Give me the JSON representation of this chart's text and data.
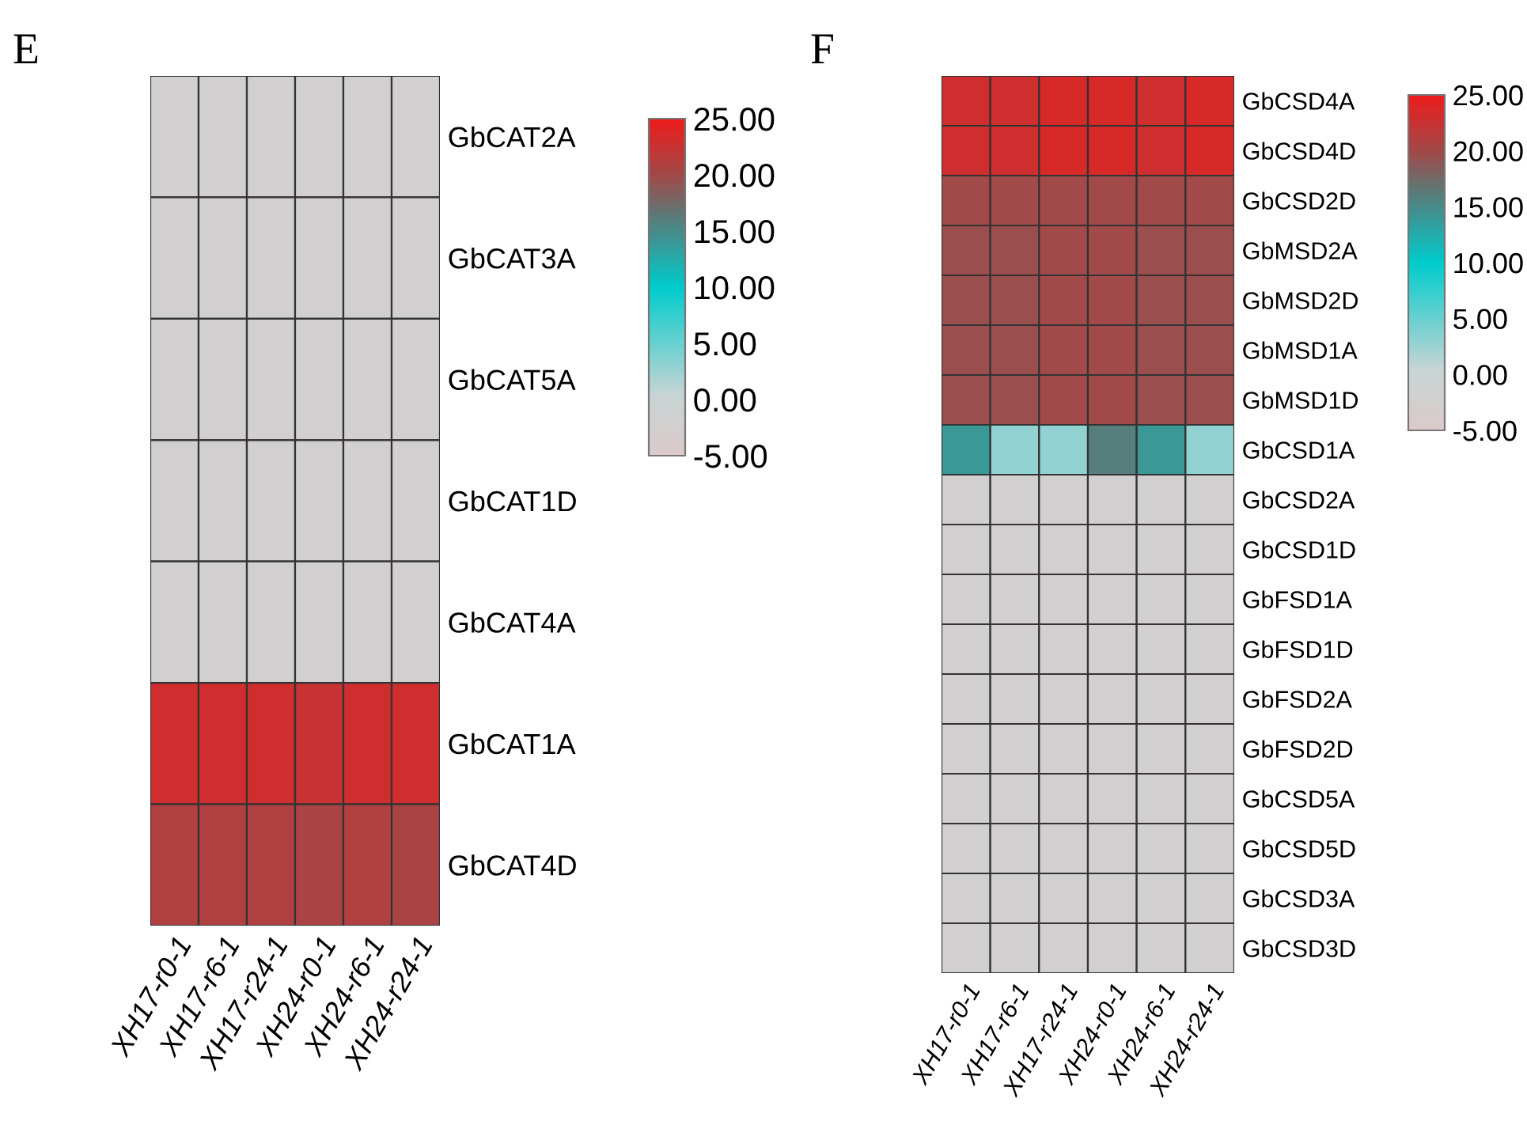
{
  "chart_data": [
    {
      "type": "heatmap",
      "title": "E",
      "categories": [
        "XH17-r0-1",
        "XH17-r6-1",
        "XH17-r24-1",
        "XH24-r0-1",
        "XH24-r6-1",
        "XH24-r24-1"
      ],
      "y_categories": [
        "GbCAT2A",
        "GbCAT3A",
        "GbCAT5A",
        "GbCAT1D",
        "GbCAT4A",
        "GbCAT1A",
        "GbCAT4D"
      ],
      "cells": [
        [
          -2,
          -2,
          -2,
          -2,
          -2,
          -2
        ],
        [
          -2,
          -2,
          -2,
          -2,
          -2,
          -2
        ],
        [
          -2,
          -2,
          -2,
          -2,
          -2,
          -2
        ],
        [
          -2,
          -2,
          -2,
          -2,
          -2,
          -2
        ],
        [
          -2,
          -2,
          -2,
          -2,
          -2,
          -2
        ],
        [
          23,
          23,
          23,
          22.5,
          23,
          23
        ],
        [
          21,
          21,
          21,
          20.5,
          21,
          20.5
        ]
      ],
      "clim": [
        -5,
        25
      ],
      "cticks": [
        {
          "value": 25,
          "label": "25.00"
        },
        {
          "value": 20,
          "label": "20.00"
        },
        {
          "value": 15,
          "label": "15.00"
        },
        {
          "value": 10,
          "label": "10.00"
        },
        {
          "value": 5,
          "label": "5.00"
        },
        {
          "value": 0,
          "label": "0.00"
        },
        {
          "value": -5,
          "label": "-5.00"
        }
      ]
    },
    {
      "type": "heatmap",
      "title": "F",
      "categories": [
        "XH17-r0-1",
        "XH17-r6-1",
        "XH17-r24-1",
        "XH24-r0-1",
        "XH24-r6-1",
        "XH24-r24-1"
      ],
      "y_categories": [
        "GbCSD4A",
        "GbCSD4D",
        "GbCSD2D",
        "GbMSD2A",
        "GbMSD2D",
        "GbMSD1A",
        "GbMSD1D",
        "GbCSD1A",
        "GbCSD2A",
        "GbCSD1D",
        "GbFSD1A",
        "GbFSD1D",
        "GbFSD2A",
        "GbFSD2D",
        "GbCSD5A",
        "GbCSD5D",
        "GbCSD3A",
        "GbCSD3D"
      ],
      "cells": [
        [
          23,
          23,
          23.5,
          23.5,
          23,
          23.5
        ],
        [
          23,
          23,
          23.5,
          23.5,
          23,
          23.5
        ],
        [
          20,
          20,
          20,
          20,
          20,
          20
        ],
        [
          19.5,
          19.5,
          20,
          20,
          19.5,
          19.5
        ],
        [
          19.5,
          19.5,
          20,
          20,
          19.5,
          19.5
        ],
        [
          19.5,
          19.5,
          20,
          20,
          19.5,
          19.5
        ],
        [
          19.5,
          19.5,
          20,
          20,
          19.5,
          19.5
        ],
        [
          14,
          3,
          3,
          16,
          14,
          3
        ],
        [
          -2,
          -2,
          -2,
          -2,
          -2,
          -2
        ],
        [
          -2,
          -2,
          -2,
          -2,
          -2,
          -2
        ],
        [
          -2,
          -2,
          -2,
          -2,
          -2,
          -2
        ],
        [
          -2,
          -2,
          -2,
          -2,
          -2,
          -2
        ],
        [
          -2,
          -2,
          -2,
          -2,
          -2,
          -2
        ],
        [
          -2,
          -2,
          -2,
          -2,
          -2,
          -2
        ],
        [
          -2,
          -2,
          -2,
          -2,
          -2,
          -2
        ],
        [
          -2,
          -2,
          -2,
          -2,
          -2,
          -2
        ],
        [
          -2,
          -2,
          -2,
          -2,
          -2,
          -2
        ],
        [
          -2,
          -2,
          -2,
          -2,
          -2,
          -2
        ]
      ],
      "clim": [
        -5,
        25
      ],
      "cticks": [
        {
          "value": 25,
          "label": "25.00"
        },
        {
          "value": 20,
          "label": "20.00"
        },
        {
          "value": 15,
          "label": "15.00"
        },
        {
          "value": 10,
          "label": "10.00"
        },
        {
          "value": 5,
          "label": "5.00"
        },
        {
          "value": 0,
          "label": "0.00"
        },
        {
          "value": -5,
          "label": "-5.00"
        }
      ]
    }
  ]
}
